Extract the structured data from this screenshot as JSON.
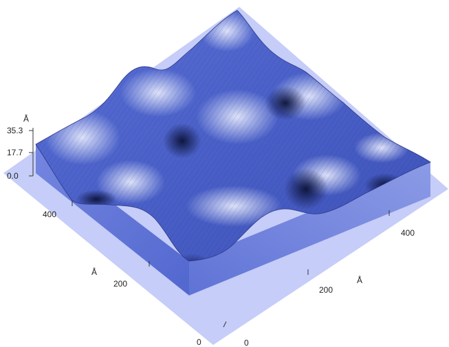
{
  "figure": {
    "z_axis": {
      "unit": "Å",
      "ticks": [
        "35.3",
        "17.7",
        "0.0"
      ],
      "max": 35.3
    },
    "left_axis": {
      "unit": "Å",
      "ticks": [
        "400",
        "200",
        "0"
      ]
    },
    "right_axis": {
      "unit": "Å",
      "ticks": [
        "400",
        "200",
        "0"
      ]
    },
    "colors": {
      "base_plane": "#c5cdf8",
      "surface_dark": "#101a46",
      "surface_mid": "#4d64d2",
      "surface_light": "#d9def6",
      "side_wall": "#6d80dd"
    }
  }
}
